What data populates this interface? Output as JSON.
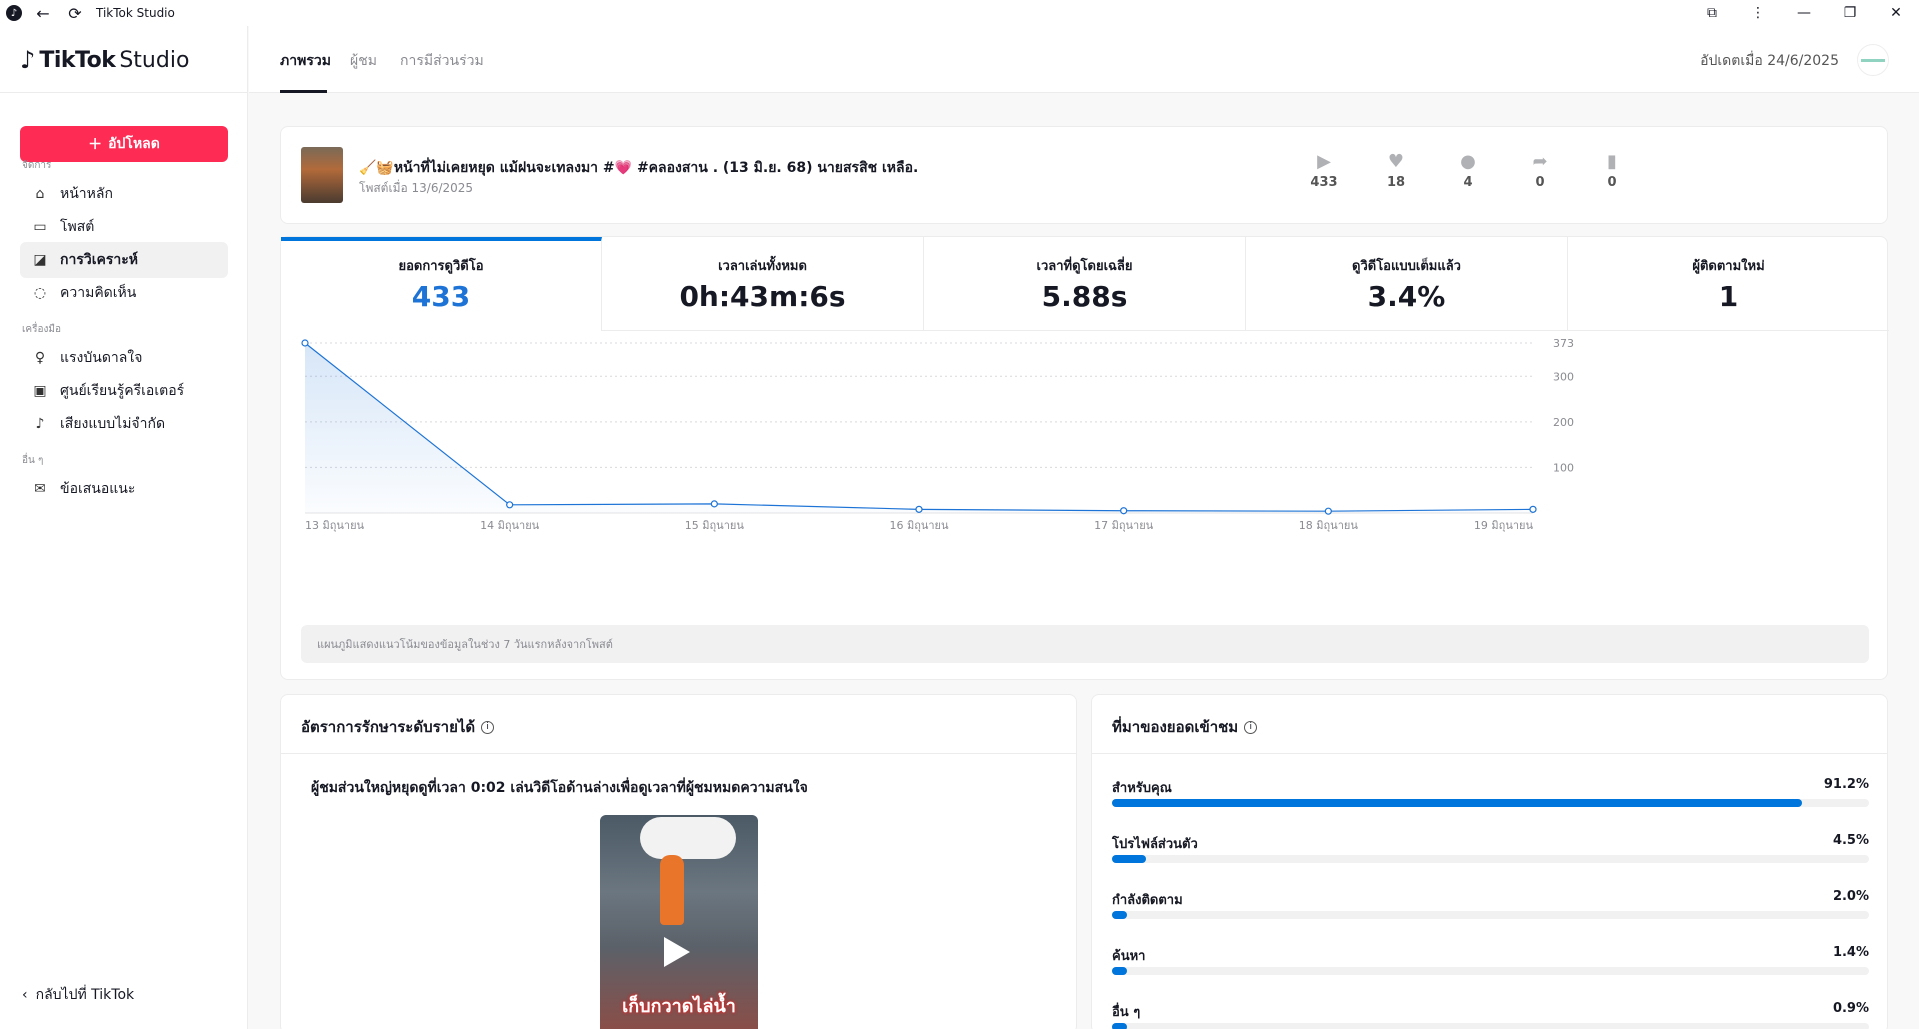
{
  "window": {
    "title": "TikTok Studio"
  },
  "app": {
    "logo_text": "TikTok",
    "logo_studio": "Studio"
  },
  "sidebar": {
    "upload_label": "อัปโหลด",
    "sections": [
      {
        "label": "จัดการ",
        "items": [
          {
            "label": "หน้าหลัก",
            "icon": "home-icon",
            "active": false
          },
          {
            "label": "โพสต์",
            "icon": "folder-icon",
            "active": false
          },
          {
            "label": "การวิเคราะห์",
            "icon": "analytics-icon",
            "active": true
          },
          {
            "label": "ความคิดเห็น",
            "icon": "comment-icon",
            "active": false
          }
        ]
      },
      {
        "label": "เครื่องมือ",
        "items": [
          {
            "label": "แรงบันดาลใจ",
            "icon": "lightbulb-icon",
            "active": false
          },
          {
            "label": "ศูนย์เรียนรู้ครีเอเตอร์",
            "icon": "book-icon",
            "active": false
          },
          {
            "label": "เสียงแบบไม่จำกัด",
            "icon": "music-note-icon",
            "active": false
          }
        ]
      },
      {
        "label": "อื่น ๆ",
        "items": [
          {
            "label": "ข้อเสนอแนะ",
            "icon": "mail-icon",
            "active": false
          }
        ]
      }
    ],
    "back_label": "กลับไปที่ TikTok"
  },
  "header": {
    "tabs": [
      {
        "label": "ภาพรวม",
        "active": true
      },
      {
        "label": "ผู้ชม",
        "active": false
      },
      {
        "label": "การมีส่วนร่วม",
        "active": false
      }
    ],
    "updated": "อัปเดตเมื่อ 24/6/2025"
  },
  "post": {
    "title": "🧹🧺หน้าที่ไม่เคยหยุด แม้ฝนจะเทลงมา #💗 #คลองสาน . (13 มิ.ย. 68) นายสรสิช เหลือ...",
    "posted": "โพสต์เมื่อ 13/6/2025",
    "stats": [
      {
        "icon": "play-icon",
        "value": "433"
      },
      {
        "icon": "heart-icon",
        "value": "18"
      },
      {
        "icon": "comment-icon",
        "value": "4"
      },
      {
        "icon": "share-icon",
        "value": "0"
      },
      {
        "icon": "bookmark-icon",
        "value": "0"
      }
    ]
  },
  "metrics": [
    {
      "label": "ยอดการดูวิดีโอ",
      "value": "433",
      "active": true
    },
    {
      "label": "เวลาเล่นทั้งหมด",
      "value": "0h:43m:6s",
      "active": false
    },
    {
      "label": "เวลาที่ดูโดยเฉลี่ย",
      "value": "5.88s",
      "active": false
    },
    {
      "label": "ดูวิดีโอแบบเต็มแล้ว",
      "value": "3.4%",
      "active": false
    },
    {
      "label": "ผู้ติดตามใหม่",
      "value": "1",
      "active": false
    }
  ],
  "chart_data": {
    "type": "area",
    "categories": [
      "13 มิถุนายน",
      "14 มิถุนายน",
      "15 มิถุนายน",
      "16 มิถุนายน",
      "17 มิถุนายน",
      "18 มิถุนายน",
      "19 มิถุนายน"
    ],
    "values": [
      373,
      18,
      20,
      8,
      5,
      4,
      8
    ],
    "yticks": [
      100,
      200,
      300,
      373
    ],
    "ylim": [
      0,
      373
    ],
    "grid": true,
    "color": "#1e74d6"
  },
  "chart_note": "แผนภูมิแสดงแนวโน้มของข้อมูลในช่วง 7 วันแรกหลังจากโพสต์",
  "retention": {
    "title": "อัตราการรักษาระดับรายได้",
    "description": "ผู้ชมส่วนใหญ่หยุดดูที่เวลา 0:02 เล่นวิดีโอด้านล่างเพื่อดูเวลาที่ผู้ชมหมดความสนใจ",
    "video_text": "เก็บกวาดไล่น้ำ"
  },
  "traffic": {
    "title": "ที่มาของยอดเข้าชม",
    "sources": [
      {
        "label": "สำหรับคุณ",
        "pct_label": "91.2%",
        "pct": 91.2
      },
      {
        "label": "โปรไฟล์ส่วนตัว",
        "pct_label": "4.5%",
        "pct": 4.5
      },
      {
        "label": "กำลังติดตาม",
        "pct_label": "2.0%",
        "pct": 2.0
      },
      {
        "label": "ค้นหา",
        "pct_label": "1.4%",
        "pct": 1.4
      },
      {
        "label": "อื่น ๆ",
        "pct_label": "0.9%",
        "pct": 0.9
      }
    ]
  }
}
